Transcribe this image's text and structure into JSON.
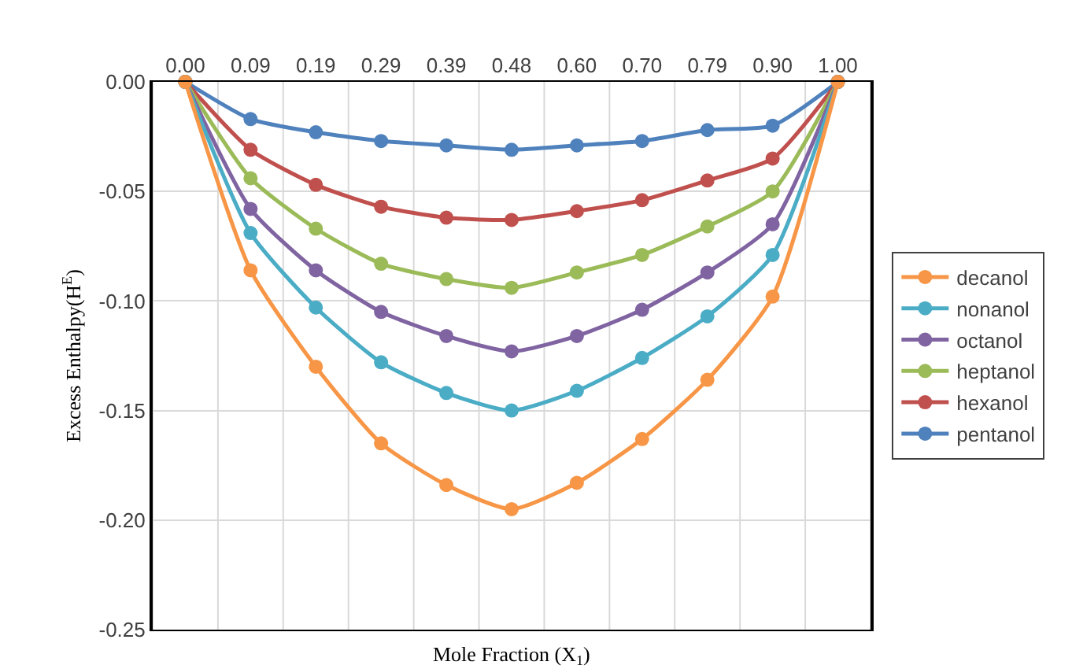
{
  "chart_data": {
    "type": "line",
    "xlabel": "Mole Fraction (X$_{1}$)",
    "ylabel": "Excess Enthalpy(H$^{E}$)",
    "categories": [
      "0.00",
      "0.09",
      "0.19",
      "0.29",
      "0.39",
      "0.48",
      "0.60",
      "0.70",
      "0.79",
      "0.90",
      "1.00"
    ],
    "series": [
      {
        "name": "decanol",
        "color": "#f79646",
        "values": [
          0,
          -0.086,
          -0.13,
          -0.165,
          -0.184,
          -0.195,
          -0.183,
          -0.163,
          -0.136,
          -0.098,
          0
        ]
      },
      {
        "name": "nonanol",
        "color": "#4bacc6",
        "values": [
          0,
          -0.069,
          -0.103,
          -0.128,
          -0.142,
          -0.15,
          -0.141,
          -0.126,
          -0.107,
          -0.079,
          0
        ]
      },
      {
        "name": "octanol",
        "color": "#8064a2",
        "values": [
          0,
          -0.058,
          -0.086,
          -0.105,
          -0.116,
          -0.123,
          -0.116,
          -0.104,
          -0.087,
          -0.065,
          0
        ]
      },
      {
        "name": "heptanol",
        "color": "#9bbb59",
        "values": [
          0,
          -0.044,
          -0.067,
          -0.083,
          -0.09,
          -0.094,
          -0.087,
          -0.079,
          -0.066,
          -0.05,
          0
        ]
      },
      {
        "name": "hexanol",
        "color": "#c0504d",
        "values": [
          0,
          -0.031,
          -0.047,
          -0.057,
          -0.062,
          -0.063,
          -0.059,
          -0.054,
          -0.045,
          -0.035,
          0
        ]
      },
      {
        "name": "pentanol",
        "color": "#4f81bd",
        "values": [
          0,
          -0.017,
          -0.023,
          -0.027,
          -0.029,
          -0.031,
          -0.029,
          -0.027,
          -0.022,
          -0.02,
          0
        ]
      }
    ],
    "ylim": [
      -0.25,
      0
    ],
    "yticks": [
      {
        "value": -0.25,
        "label": "-0.25"
      },
      {
        "value": -0.2,
        "label": "-0.20"
      },
      {
        "value": -0.15,
        "label": "-0.15"
      },
      {
        "value": -0.1,
        "label": "-0.10"
      },
      {
        "value": -0.05,
        "label": "-0.05"
      },
      {
        "value": 0,
        "label": "0.00"
      }
    ],
    "grid": true,
    "legend": "right",
    "marker": "circle",
    "line_style": "solid"
  }
}
